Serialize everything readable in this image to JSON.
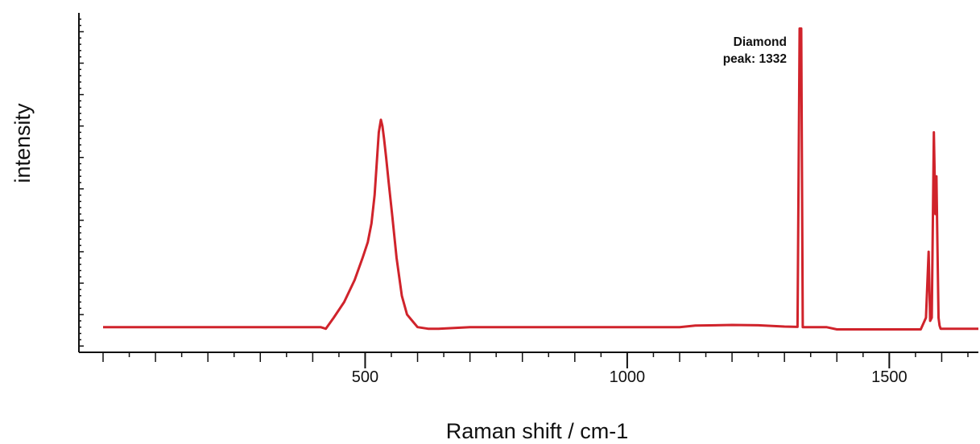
{
  "chart_data": {
    "type": "line",
    "title": "",
    "xlabel": "Raman shift / cm-1",
    "ylabel": "intensity",
    "xlim": [
      0,
      1670
    ],
    "ylim": [
      -0.08,
      1.0
    ],
    "x_major_ticks": [
      500,
      1000,
      1500
    ],
    "x_tick_labels": [
      "500",
      "1000",
      "1500"
    ],
    "grid": false,
    "legend": "none",
    "series": [
      {
        "color": "#d0232b",
        "x": [
          0,
          415,
          425,
          440,
          460,
          480,
          495,
          505,
          512,
          518,
          522,
          526,
          530,
          533,
          536,
          540,
          545,
          552,
          560,
          570,
          580,
          600,
          620,
          640,
          700,
          800,
          900,
          1000,
          1100,
          1130,
          1200,
          1250,
          1300,
          1325,
          1329,
          1332,
          1335,
          1340,
          1380,
          1400,
          1450,
          1500,
          1560,
          1570,
          1575,
          1578,
          1581,
          1585,
          1588,
          1590,
          1592,
          1594,
          1596,
          1598,
          1602,
          1606,
          1610,
          1620,
          1670
        ],
        "y": [
          0.0,
          0.0,
          -0.005,
          0.03,
          0.08,
          0.15,
          0.22,
          0.27,
          0.33,
          0.42,
          0.52,
          0.62,
          0.66,
          0.64,
          0.6,
          0.54,
          0.46,
          0.35,
          0.22,
          0.1,
          0.04,
          0.0,
          -0.005,
          -0.005,
          0.0,
          0.0,
          0.0,
          0.0,
          0.0,
          0.005,
          0.007,
          0.006,
          0.002,
          0.001,
          0.95,
          0.95,
          0.0,
          0.0,
          0.0,
          -0.007,
          -0.007,
          -0.007,
          -0.007,
          0.03,
          0.24,
          0.02,
          0.03,
          0.62,
          0.36,
          0.48,
          0.25,
          0.03,
          0.005,
          -0.005,
          -0.005,
          -0.005,
          -0.005,
          -0.005,
          -0.005
        ]
      }
    ],
    "annotations": [
      {
        "lines": [
          "Diamond",
          "peak:  1332"
        ],
        "x": 1332
      }
    ]
  }
}
